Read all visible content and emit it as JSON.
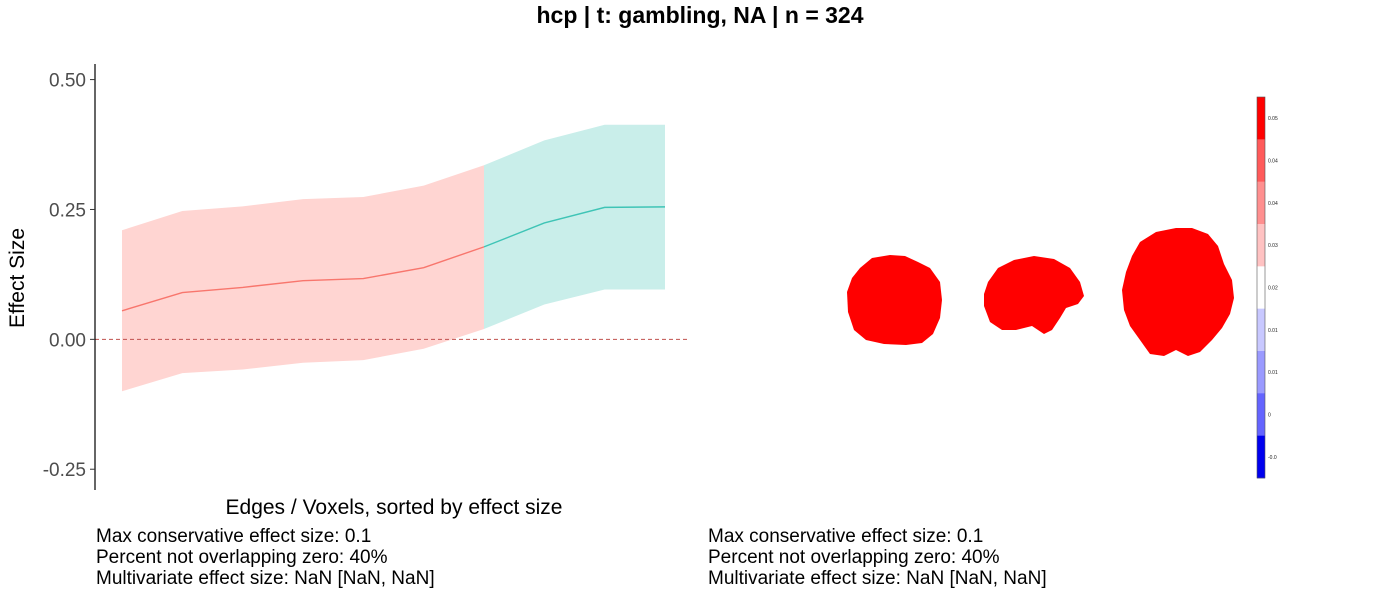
{
  "title": "hcp | t: gambling, NA | n = 324",
  "chart_data": {
    "type": "line",
    "title": "hcp | t: gambling, NA | n = 324",
    "xlabel": "Edges / Voxels, sorted by effect size",
    "ylabel": "Effect Size",
    "ylim": [
      -0.29,
      0.53
    ],
    "yticks": [
      -0.25,
      0.0,
      0.25,
      0.5
    ],
    "ytick_labels": [
      "-0.25",
      "0.00",
      "0.25",
      "0.50"
    ],
    "grid": false,
    "reference_line": {
      "y": 0.0,
      "style": "dashed",
      "color": "#c0504d"
    },
    "series": [
      {
        "color": "#f8766d",
        "band_color": "#ffd5d2",
        "x": [
          1,
          2,
          3,
          4,
          5,
          6,
          7
        ],
        "y": [
          0.055,
          0.09,
          0.1,
          0.113,
          0.117,
          0.138,
          0.178
        ],
        "lower": [
          -0.1,
          -0.065,
          -0.058,
          -0.045,
          -0.04,
          -0.018,
          0.02
        ],
        "upper": [
          0.21,
          0.247,
          0.256,
          0.27,
          0.274,
          0.296,
          0.335
        ]
      },
      {
        "color": "#3fc4b6",
        "band_color": "#c9eeea",
        "x": [
          7,
          8,
          9,
          10
        ],
        "y": [
          0.178,
          0.224,
          0.254,
          0.255
        ],
        "lower": [
          0.02,
          0.067,
          0.096,
          0.096
        ],
        "upper": [
          0.335,
          0.383,
          0.413,
          0.413
        ]
      }
    ],
    "x_range": [
      1,
      10
    ]
  },
  "stats_left": {
    "line1": "Max conservative effect size: 0.1",
    "line2": "Percent not overlapping zero: 40%",
    "line3": "Multivariate effect size: NaN [NaN, NaN]"
  },
  "stats_right": {
    "line1": "Max conservative effect size: 0.1",
    "line2": "Percent not overlapping zero: 40%",
    "line3": "Multivariate effect size: NaN [NaN, NaN]"
  },
  "brain_colorbar": {
    "labels": [
      "0.05",
      "0.04",
      "0.04",
      "0.03",
      "0.02",
      "0.01",
      "0.01",
      "0",
      "-0.0"
    ],
    "colors": [
      "#ff0000",
      "#ff5a5a",
      "#ff8f8f",
      "#ffc2c2",
      "#ffffff",
      "#c8c8ff",
      "#9a9aff",
      "#6464ff",
      "#0000ee"
    ]
  },
  "brain_color": "#ff0000"
}
